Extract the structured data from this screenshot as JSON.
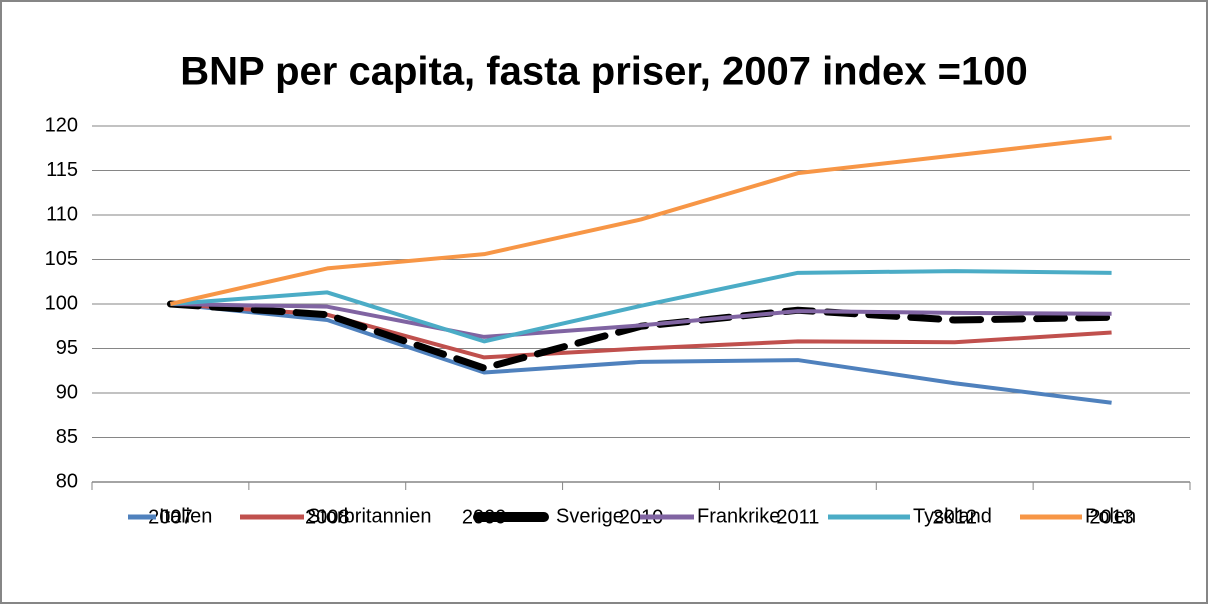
{
  "chart_data": {
    "type": "line",
    "title": "BNP per capita, fasta priser, 2007 index =100",
    "categories": [
      "2007",
      "2008",
      "2009",
      "2010",
      "2011",
      "2012",
      "2013"
    ],
    "series": [
      {
        "name": "Italien",
        "color": "#4f81bd",
        "values": [
          100,
          98.2,
          92.3,
          93.5,
          93.7,
          91.1,
          88.9
        ]
      },
      {
        "name": "Storbritannien",
        "color": "#c0504d",
        "values": [
          100,
          98.8,
          94.0,
          95.0,
          95.8,
          95.7,
          96.8
        ]
      },
      {
        "name": "Sverige",
        "color": "#000000",
        "dashed": true,
        "values": [
          100,
          98.8,
          92.8,
          97.5,
          99.3,
          98.2,
          98.5
        ]
      },
      {
        "name": "Frankrike",
        "color": "#8064a2",
        "values": [
          100,
          99.7,
          96.3,
          97.6,
          99.2,
          99.0,
          98.9
        ]
      },
      {
        "name": "Tyskland",
        "color": "#4bacc6",
        "values": [
          100,
          101.3,
          95.8,
          99.8,
          103.5,
          103.7,
          103.5
        ]
      },
      {
        "name": "Polen",
        "color": "#f79646",
        "values": [
          100,
          104.0,
          105.6,
          109.5,
          114.7,
          116.7,
          118.7
        ]
      }
    ],
    "ylim": [
      80,
      120
    ],
    "yticks": [
      80,
      85,
      90,
      95,
      100,
      105,
      110,
      115,
      120
    ],
    "grid": true,
    "legend": "bottom"
  }
}
